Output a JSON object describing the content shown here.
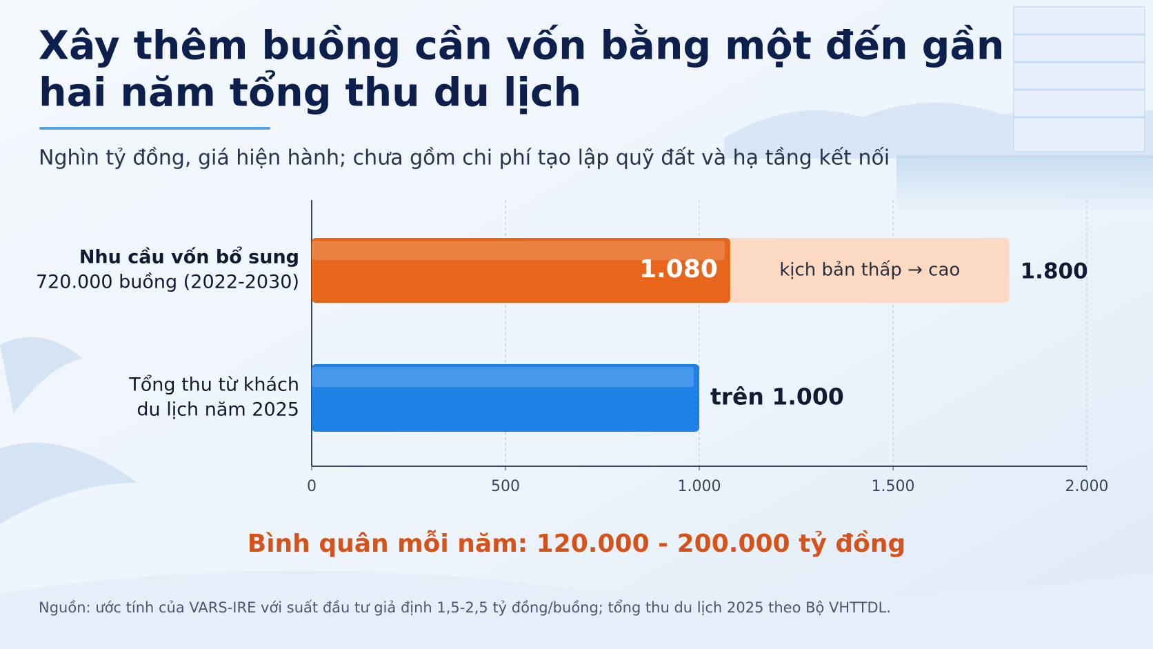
{
  "chart_data": {
    "type": "bar",
    "orientation": "horizontal",
    "title": [
      "Xây thêm buồng cần vốn bằng một đến gần",
      "hai năm tổng thu du lịch"
    ],
    "subtitle": "Nghìn tỷ đồng, giá hiện hành; chưa gồm chi phí tạo lập quỹ đất và hạ tầng kết nối",
    "bars": [
      {
        "category": [
          "Nhu cầu vốn bổ sung",
          "720.000 buồng (2022-2030)"
        ],
        "value": 1080,
        "value_label": "1.080",
        "high": 1800,
        "high_label": "1.800",
        "range_note": "kịch bản thấp → cao",
        "color": "#e8661c",
        "high_color": "#fbd9c3"
      },
      {
        "category": [
          "Tổng thu từ khách",
          "du lịch năm 2025"
        ],
        "value": 1000,
        "value_label": "trên 1.000",
        "color": "#1f80e6"
      }
    ],
    "xlim": [
      0,
      2000
    ],
    "xticks": [
      0,
      500,
      {
        "value": 1000,
        "label": "1.000"
      },
      {
        "value": 1500,
        "label": "1.500"
      },
      {
        "value": 2000,
        "label": "2.000"
      }
    ],
    "grid": true,
    "note": "Bình quân mỗi năm: 120.000 - 200.000 tỷ đồng",
    "source": "Nguồn: ước tính của VARS-IRE với suất đầu tư giả định 1,5-2,5 tỷ đồng/buồng; tổng thu du lịch 2025 theo Bộ VHTTDL."
  }
}
